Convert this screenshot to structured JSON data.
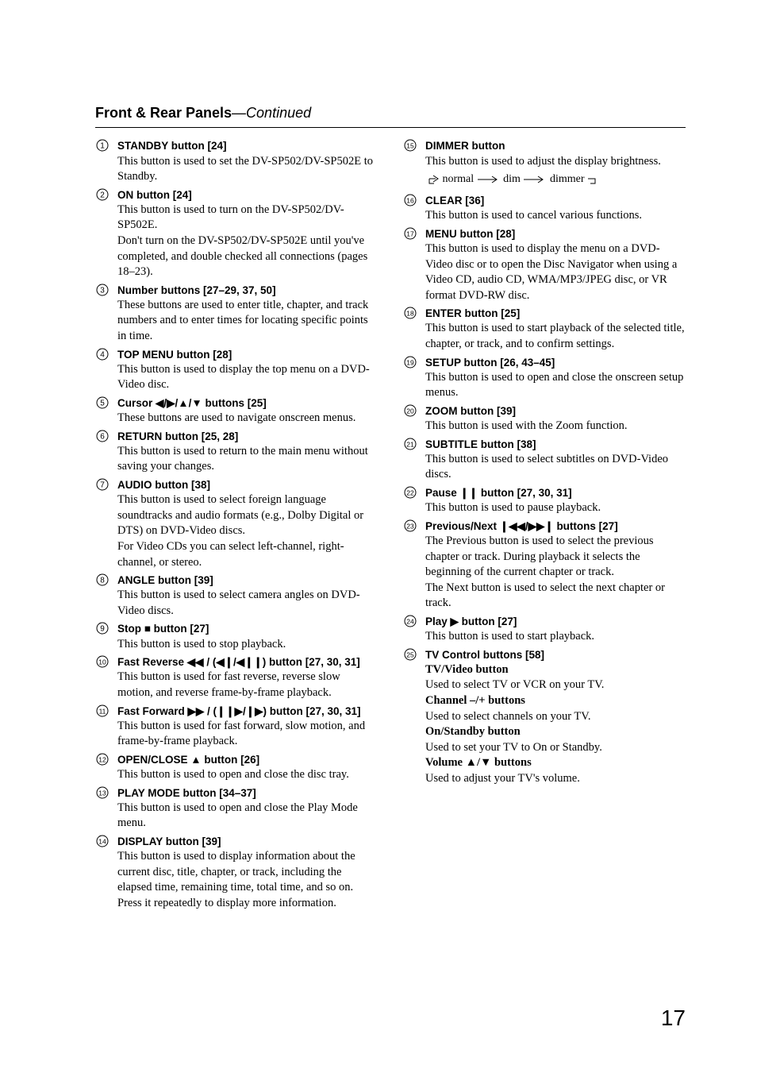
{
  "heading": {
    "title": "Front & Rear Panels",
    "continued": "—Continued"
  },
  "pageNumber": "17",
  "leftItems": [
    {
      "n": 1,
      "label": "STANDBY button [24]",
      "paras": [
        "This button is used to set the DV-SP502/DV-SP502E to Standby."
      ]
    },
    {
      "n": 2,
      "label": "ON button [24]",
      "paras": [
        "This button is used to turn on the DV-SP502/DV-SP502E.",
        "Don't turn on the DV-SP502/DV-SP502E until you've completed, and double checked all connections (pages 18–23)."
      ]
    },
    {
      "n": 3,
      "label": "Number buttons [27–29, 37, 50]",
      "paras": [
        "These buttons are used to enter title, chapter, and track numbers and to enter times for locating specific points in time."
      ]
    },
    {
      "n": 4,
      "label": "TOP MENU button [28]",
      "paras": [
        "This button is used to display the top menu on a DVD-Video disc."
      ]
    },
    {
      "n": 5,
      "label": "Cursor ◀/▶/▲/▼ buttons [25]",
      "paras": [
        "These buttons are used to navigate onscreen menus."
      ]
    },
    {
      "n": 6,
      "label": "RETURN button [25, 28]",
      "paras": [
        "This button is used to return to the main menu without saving your changes."
      ]
    },
    {
      "n": 7,
      "label": "AUDIO button [38]",
      "paras": [
        "This button is used to select foreign language soundtracks and audio formats (e.g., Dolby Digital or DTS) on DVD-Video discs.",
        "For Video CDs you can select left-channel, right-channel, or stereo."
      ]
    },
    {
      "n": 8,
      "label": "ANGLE button [39]",
      "paras": [
        "This button is used to select camera angles on DVD-Video discs."
      ]
    },
    {
      "n": 9,
      "label": "Stop ■ button [27]",
      "paras": [
        "This button is used to stop playback."
      ]
    },
    {
      "n": 10,
      "label": "Fast Reverse ◀◀ / (◀❙/◀❙❙) button [27, 30, 31]",
      "paras": [
        "This button is used for fast reverse, reverse slow motion, and reverse frame-by-frame playback."
      ]
    },
    {
      "n": 11,
      "label": "Fast Forward ▶▶ / (❙❙▶/❙▶) button [27, 30, 31]",
      "paras": [
        "This button is used for fast forward, slow motion, and frame-by-frame playback."
      ]
    },
    {
      "n": 12,
      "label": "OPEN/CLOSE ▲ button [26]",
      "paras": [
        "This button is used to open and close the disc tray."
      ]
    },
    {
      "n": 13,
      "label": "PLAY MODE button [34–37]",
      "paras": [
        "This button is used to open and close the Play Mode menu."
      ]
    },
    {
      "n": 14,
      "label": "DISPLAY button [39]",
      "paras": [
        "This button is used to display information about the current disc, title, chapter, or track, including the elapsed time, remaining time, total time, and so on. Press it repeatedly to display more information."
      ]
    }
  ],
  "rightItems": [
    {
      "n": 15,
      "label": "DIMMER button",
      "paras": [
        "This button is used to adjust the display brightness."
      ],
      "flow": {
        "steps": [
          "normal",
          "dim",
          "dimmer"
        ]
      }
    },
    {
      "n": 16,
      "label": "CLEAR [36]",
      "paras": [
        "This button is used to cancel various functions."
      ]
    },
    {
      "n": 17,
      "label": "MENU button [28]",
      "paras": [
        "This button is used to display the menu on a DVD-Video disc or to open the Disc Navigator when using a Video CD, audio CD, WMA/MP3/JPEG disc, or VR format DVD-RW disc."
      ]
    },
    {
      "n": 18,
      "label": "ENTER button [25]",
      "paras": [
        "This button is used to start playback of the selected title, chapter, or track, and to confirm settings."
      ]
    },
    {
      "n": 19,
      "label": "SETUP button [26, 43–45]",
      "paras": [
        "This button is used to open and close the onscreen setup menus."
      ]
    },
    {
      "n": 20,
      "label": "ZOOM button [39]",
      "paras": [
        "This button is used with the Zoom function."
      ]
    },
    {
      "n": 21,
      "label": "SUBTITLE button [38]",
      "paras": [
        "This button is used to select subtitles on DVD-Video discs."
      ]
    },
    {
      "n": 22,
      "label": "Pause ❙❙ button [27, 30, 31]",
      "paras": [
        "This button is used to pause playback."
      ]
    },
    {
      "n": 23,
      "label": "Previous/Next ❙◀◀/▶▶❙ buttons [27]",
      "paras": [
        "The Previous button is used to select the previous chapter or track. During playback it selects the beginning of the current chapter or track.",
        "The Next button is used to select the next chapter or track."
      ]
    },
    {
      "n": 24,
      "label": "Play ▶ button [27]",
      "paras": [
        "This button is used to start playback."
      ]
    },
    {
      "n": 25,
      "label": "TV Control buttons [58]",
      "subs": [
        {
          "bold": "TV/Video button",
          "text": "Used to select TV or VCR on your TV."
        },
        {
          "bold": "Channel –/+ buttons",
          "text": "Used to select channels on your TV."
        },
        {
          "bold": "On/Standby button",
          "text": "Used to set your TV to On or Standby."
        },
        {
          "bold": "Volume ▲/▼ buttons",
          "text": "Used to adjust your TV's volume."
        }
      ]
    }
  ]
}
